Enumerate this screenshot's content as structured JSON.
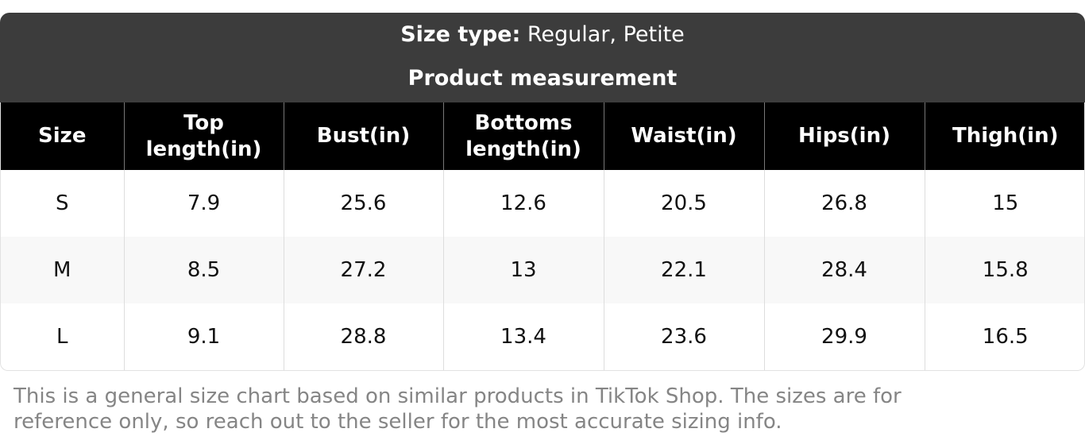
{
  "header": {
    "size_type_label": "Size type:",
    "size_type_value": "Regular, Petite",
    "subtitle": "Product measurement"
  },
  "table": {
    "columns": [
      "Size",
      "Top length(in)",
      "Bust(in)",
      "Bottoms length(in)",
      "Waist(in)",
      "Hips(in)",
      "Thigh(in)"
    ],
    "rows": [
      [
        "S",
        "7.9",
        "25.6",
        "12.6",
        "20.5",
        "26.8",
        "15"
      ],
      [
        "M",
        "8.5",
        "27.2",
        "13",
        "22.1",
        "28.4",
        "15.8"
      ],
      [
        "L",
        "9.1",
        "28.8",
        "13.4",
        "23.6",
        "29.9",
        "16.5"
      ]
    ]
  },
  "footnote": "This is a general size chart based on similar products in TikTok Shop. The sizes are for reference only, so reach out to the seller for the most accurate sizing info."
}
